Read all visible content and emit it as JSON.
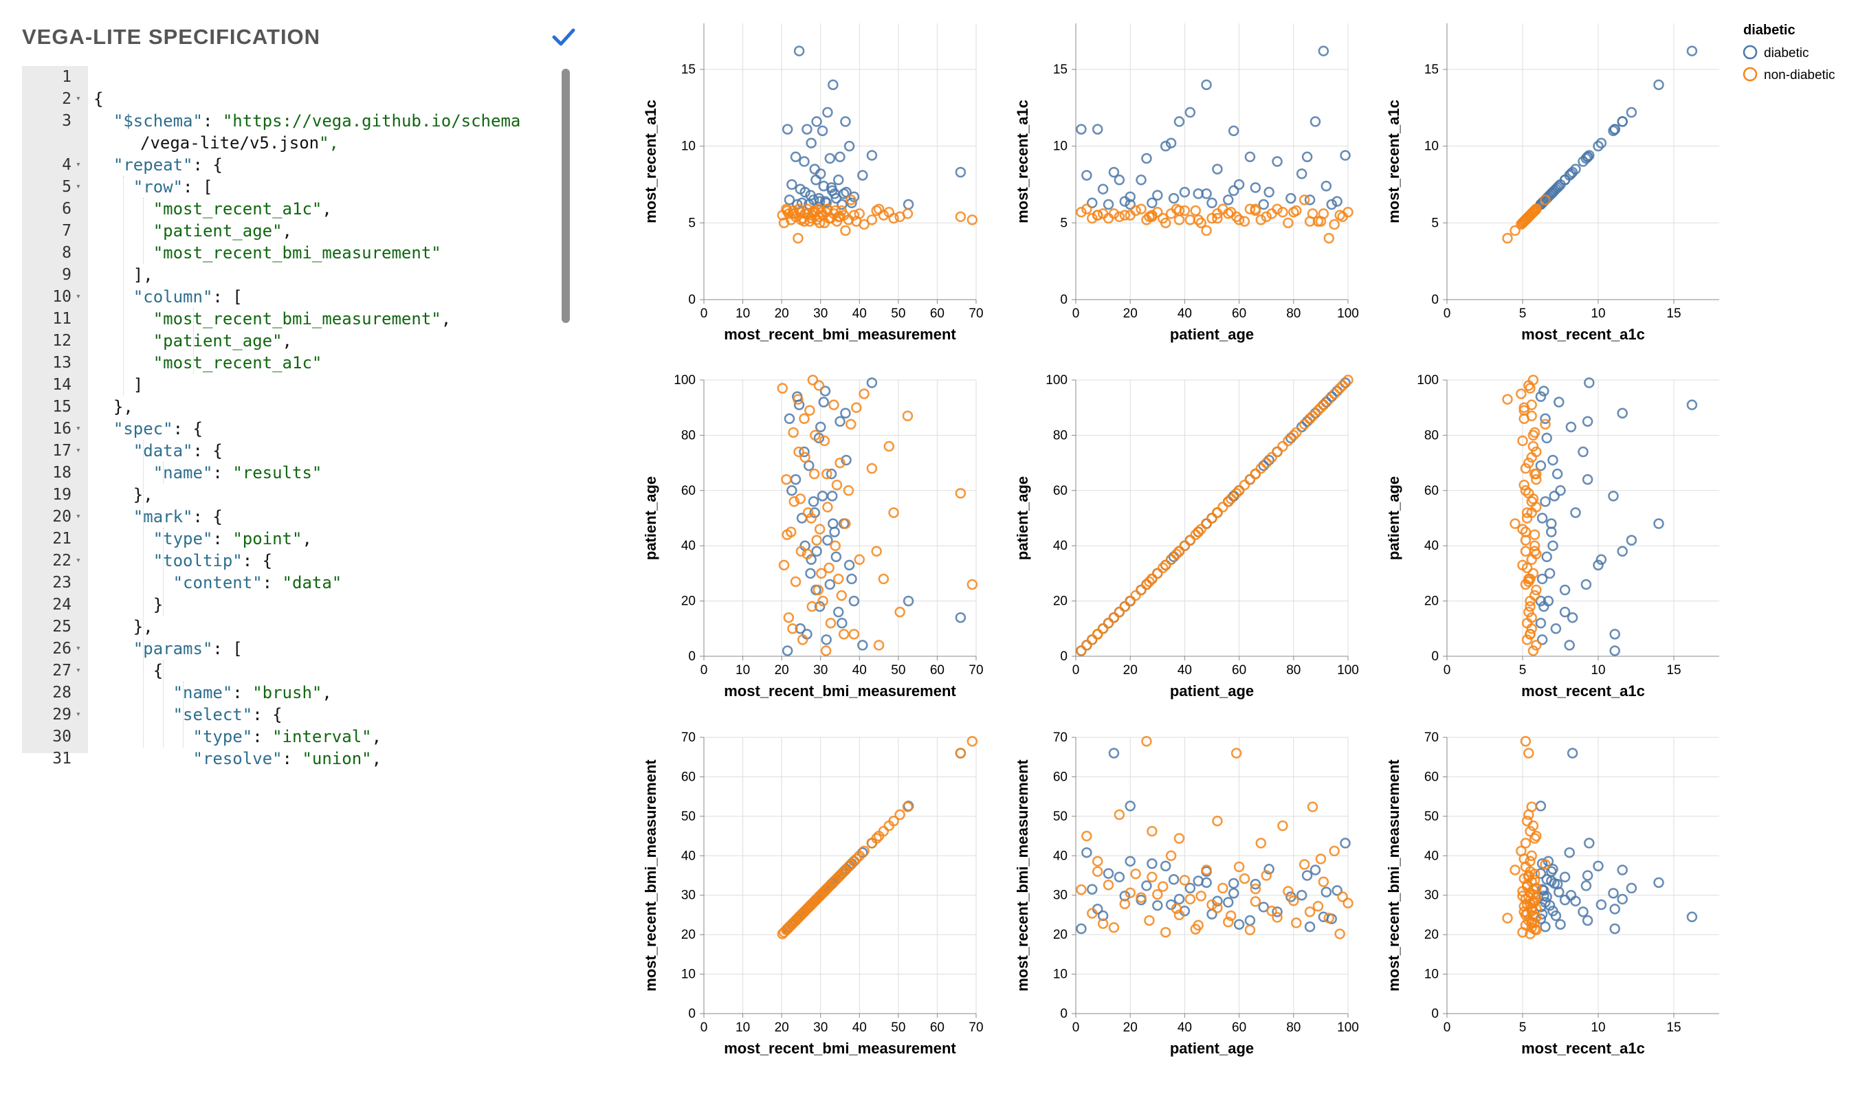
{
  "editor": {
    "title": "VEGA-LITE SPECIFICATION",
    "valid_icon": "check-icon",
    "lines": [
      {
        "n": "1",
        "text": "",
        "fold": false
      },
      {
        "n": "2",
        "text": "{",
        "fold": true
      },
      {
        "n": "3",
        "text": "  \"$schema\": \"https://vega.github.io/schema",
        "fold": false
      },
      {
        "n": "",
        "text": "/vega-lite/v5.json\",",
        "fold": false,
        "cont": true
      },
      {
        "n": "4",
        "text": "  \"repeat\": {",
        "fold": true
      },
      {
        "n": "5",
        "text": "    \"row\": [",
        "fold": true
      },
      {
        "n": "6",
        "text": "      \"most_recent_a1c\",",
        "fold": false
      },
      {
        "n": "7",
        "text": "      \"patient_age\",",
        "fold": false
      },
      {
        "n": "8",
        "text": "      \"most_recent_bmi_measurement\"",
        "fold": false
      },
      {
        "n": "9",
        "text": "    ],",
        "fold": false
      },
      {
        "n": "10",
        "text": "    \"column\": [",
        "fold": true
      },
      {
        "n": "11",
        "text": "      \"most_recent_bmi_measurement\",",
        "fold": false
      },
      {
        "n": "12",
        "text": "      \"patient_age\",",
        "fold": false
      },
      {
        "n": "13",
        "text": "      \"most_recent_a1c\"",
        "fold": false
      },
      {
        "n": "14",
        "text": "    ]",
        "fold": false
      },
      {
        "n": "15",
        "text": "  },",
        "fold": false
      },
      {
        "n": "16",
        "text": "  \"spec\": {",
        "fold": true
      },
      {
        "n": "17",
        "text": "    \"data\": {",
        "fold": true
      },
      {
        "n": "18",
        "text": "      \"name\": \"results\"",
        "fold": false
      },
      {
        "n": "19",
        "text": "    },",
        "fold": false
      },
      {
        "n": "20",
        "text": "    \"mark\": {",
        "fold": true
      },
      {
        "n": "21",
        "text": "      \"type\": \"point\",",
        "fold": false
      },
      {
        "n": "22",
        "text": "      \"tooltip\": {",
        "fold": true
      },
      {
        "n": "23",
        "text": "        \"content\": \"data\"",
        "fold": false
      },
      {
        "n": "24",
        "text": "      }",
        "fold": false
      },
      {
        "n": "25",
        "text": "    },",
        "fold": false
      },
      {
        "n": "26",
        "text": "    \"params\": [",
        "fold": true
      },
      {
        "n": "27",
        "text": "      {",
        "fold": true
      },
      {
        "n": "28",
        "text": "        \"name\": \"brush\",",
        "fold": false
      },
      {
        "n": "29",
        "text": "        \"select\": {",
        "fold": true
      },
      {
        "n": "30",
        "text": "          \"type\": \"interval\",",
        "fold": false
      },
      {
        "n": "31",
        "text": "          \"resolve\": \"union\",",
        "fold": false
      }
    ]
  },
  "chart_data": {
    "type": "scatter",
    "title": "",
    "columns": [
      "most_recent_bmi_measurement",
      "patient_age",
      "most_recent_a1c"
    ],
    "rows": [
      "most_recent_a1c",
      "patient_age",
      "most_recent_bmi_measurement"
    ],
    "fields": {
      "most_recent_bmi_measurement": {
        "domain": [
          0,
          70
        ],
        "ticks": [
          0,
          10,
          20,
          30,
          40,
          50,
          60,
          70
        ],
        "label": "most_recent_bmi_measurement"
      },
      "patient_age": {
        "domain": [
          0,
          100
        ],
        "ticks": [
          0,
          20,
          40,
          60,
          80,
          100
        ],
        "label": "patient_age"
      },
      "most_recent_a1c": {
        "domain": [
          0,
          18
        ],
        "ticks": [
          0,
          5,
          10,
          15
        ],
        "label": "most_recent_a1c"
      }
    },
    "legend": {
      "title": "diabetic",
      "position": "top-right",
      "entries": [
        {
          "label": "diabetic",
          "color": "#4c78a8"
        },
        {
          "label": "non-diabetic",
          "color": "#f58518"
        }
      ]
    },
    "grid": true,
    "series": [
      {
        "name": "diabetic",
        "color": "#4c78a8",
        "points": [
          {
            "most_recent_bmi_measurement": 24.5,
            "patient_age": 91,
            "most_recent_a1c": 16.2
          },
          {
            "most_recent_bmi_measurement": 33.2,
            "patient_age": 48,
            "most_recent_a1c": 14.0
          },
          {
            "most_recent_bmi_measurement": 66.0,
            "patient_age": 14,
            "most_recent_a1c": 8.3
          },
          {
            "most_recent_bmi_measurement": 52.6,
            "patient_age": 20,
            "most_recent_a1c": 6.2
          },
          {
            "most_recent_bmi_measurement": 21.5,
            "patient_age": 2,
            "most_recent_a1c": 11.1
          },
          {
            "most_recent_bmi_measurement": 26.5,
            "patient_age": 8,
            "most_recent_a1c": 11.1
          },
          {
            "most_recent_bmi_measurement": 29.0,
            "patient_age": 38,
            "most_recent_a1c": 11.6
          },
          {
            "most_recent_bmi_measurement": 30.5,
            "patient_age": 58,
            "most_recent_a1c": 11.0
          },
          {
            "most_recent_bmi_measurement": 31.8,
            "patient_age": 42,
            "most_recent_a1c": 12.2
          },
          {
            "most_recent_bmi_measurement": 36.4,
            "patient_age": 88,
            "most_recent_a1c": 11.6
          },
          {
            "most_recent_bmi_measurement": 27.6,
            "patient_age": 35,
            "most_recent_a1c": 10.2
          },
          {
            "most_recent_bmi_measurement": 35.0,
            "patient_age": 85,
            "most_recent_a1c": 9.3
          },
          {
            "most_recent_bmi_measurement": 43.2,
            "patient_age": 99,
            "most_recent_a1c": 9.4
          },
          {
            "most_recent_bmi_measurement": 37.4,
            "patient_age": 33,
            "most_recent_a1c": 10.0
          },
          {
            "most_recent_bmi_measurement": 23.6,
            "patient_age": 64,
            "most_recent_a1c": 9.3
          },
          {
            "most_recent_bmi_measurement": 25.8,
            "patient_age": 74,
            "most_recent_a1c": 9.0
          },
          {
            "most_recent_bmi_measurement": 32.4,
            "patient_age": 26,
            "most_recent_a1c": 9.2
          },
          {
            "most_recent_bmi_measurement": 28.5,
            "patient_age": 52,
            "most_recent_a1c": 8.5
          },
          {
            "most_recent_bmi_measurement": 40.8,
            "patient_age": 4,
            "most_recent_a1c": 8.1
          },
          {
            "most_recent_bmi_measurement": 22.6,
            "patient_age": 60,
            "most_recent_a1c": 7.5
          },
          {
            "most_recent_bmi_measurement": 34.6,
            "patient_age": 16,
            "most_recent_a1c": 7.8
          },
          {
            "most_recent_bmi_measurement": 30.8,
            "patient_age": 92,
            "most_recent_a1c": 7.4
          },
          {
            "most_recent_bmi_measurement": 24.8,
            "patient_age": 10,
            "most_recent_a1c": 7.2
          },
          {
            "most_recent_bmi_measurement": 36.6,
            "patient_age": 71,
            "most_recent_a1c": 7.0
          },
          {
            "most_recent_bmi_measurement": 27.4,
            "patient_age": 30,
            "most_recent_a1c": 6.8
          },
          {
            "most_recent_bmi_measurement": 33.6,
            "patient_age": 45,
            "most_recent_a1c": 6.9
          },
          {
            "most_recent_bmi_measurement": 29.6,
            "patient_age": 79,
            "most_recent_a1c": 6.6
          },
          {
            "most_recent_bmi_measurement": 31.2,
            "patient_age": 96,
            "most_recent_a1c": 6.4
          },
          {
            "most_recent_bmi_measurement": 38.6,
            "patient_age": 20,
            "most_recent_a1c": 6.7
          },
          {
            "most_recent_bmi_measurement": 28.2,
            "patient_age": 56,
            "most_recent_a1c": 6.5
          },
          {
            "most_recent_bmi_measurement": 26.0,
            "patient_age": 40,
            "most_recent_a1c": 7.0
          },
          {
            "most_recent_bmi_measurement": 32.8,
            "patient_age": 66,
            "most_recent_a1c": 7.3
          },
          {
            "most_recent_bmi_measurement": 35.5,
            "patient_age": 12,
            "most_recent_a1c": 6.2
          },
          {
            "most_recent_bmi_measurement": 30.0,
            "patient_age": 83,
            "most_recent_a1c": 8.2
          },
          {
            "most_recent_bmi_measurement": 25.2,
            "patient_age": 50,
            "most_recent_a1c": 6.3
          },
          {
            "most_recent_bmi_measurement": 28.8,
            "patient_age": 24,
            "most_recent_a1c": 7.8
          },
          {
            "most_recent_bmi_measurement": 34.0,
            "patient_age": 36,
            "most_recent_a1c": 6.6
          },
          {
            "most_recent_bmi_measurement": 22.0,
            "patient_age": 86,
            "most_recent_a1c": 6.5
          },
          {
            "most_recent_bmi_measurement": 31.5,
            "patient_age": 6,
            "most_recent_a1c": 6.3
          },
          {
            "most_recent_bmi_measurement": 27.0,
            "patient_age": 69,
            "most_recent_a1c": 6.2
          },
          {
            "most_recent_bmi_measurement": 36.0,
            "patient_age": 48,
            "most_recent_a1c": 6.9
          },
          {
            "most_recent_bmi_measurement": 29.8,
            "patient_age": 18,
            "most_recent_a1c": 6.4
          },
          {
            "most_recent_bmi_measurement": 24.0,
            "patient_age": 94,
            "most_recent_a1c": 6.2
          },
          {
            "most_recent_bmi_measurement": 33.0,
            "patient_age": 58,
            "most_recent_a1c": 7.1
          },
          {
            "most_recent_bmi_measurement": 38.0,
            "patient_age": 28,
            "most_recent_a1c": 6.3
          }
        ]
      },
      {
        "name": "non-diabetic",
        "color": "#f58518",
        "points": [
          {
            "most_recent_bmi_measurement": 69.0,
            "patient_age": 26,
            "most_recent_a1c": 5.2
          },
          {
            "most_recent_bmi_measurement": 66.0,
            "patient_age": 59,
            "most_recent_a1c": 5.4
          },
          {
            "most_recent_bmi_measurement": 52.4,
            "patient_age": 87,
            "most_recent_a1c": 5.6
          },
          {
            "most_recent_bmi_measurement": 50.4,
            "patient_age": 16,
            "most_recent_a1c": 5.4
          },
          {
            "most_recent_bmi_measurement": 47.6,
            "patient_age": 76,
            "most_recent_a1c": 5.7
          },
          {
            "most_recent_bmi_measurement": 45.0,
            "patient_age": 4,
            "most_recent_a1c": 5.9
          },
          {
            "most_recent_bmi_measurement": 43.2,
            "patient_age": 68,
            "most_recent_a1c": 5.2
          },
          {
            "most_recent_bmi_measurement": 41.2,
            "patient_age": 95,
            "most_recent_a1c": 4.9
          },
          {
            "most_recent_bmi_measurement": 40.0,
            "patient_age": 35,
            "most_recent_a1c": 5.6
          },
          {
            "most_recent_bmi_measurement": 38.6,
            "patient_age": 8,
            "most_recent_a1c": 5.5
          },
          {
            "most_recent_bmi_measurement": 37.8,
            "patient_age": 84,
            "most_recent_a1c": 6.5
          },
          {
            "most_recent_bmi_measurement": 36.4,
            "patient_age": 48,
            "most_recent_a1c": 4.5
          },
          {
            "most_recent_bmi_measurement": 35.4,
            "patient_age": 22,
            "most_recent_a1c": 5.8
          },
          {
            "most_recent_bmi_measurement": 34.2,
            "patient_age": 62,
            "most_recent_a1c": 5.1
          },
          {
            "most_recent_bmi_measurement": 33.4,
            "patient_age": 91,
            "most_recent_a1c": 5.6
          },
          {
            "most_recent_bmi_measurement": 32.6,
            "patient_age": 12,
            "most_recent_a1c": 5.3
          },
          {
            "most_recent_bmi_measurement": 31.8,
            "patient_age": 54,
            "most_recent_a1c": 5.9
          },
          {
            "most_recent_bmi_measurement": 31.0,
            "patient_age": 78,
            "most_recent_a1c": 5.0
          },
          {
            "most_recent_bmi_measurement": 30.2,
            "patient_age": 30,
            "most_recent_a1c": 5.7
          },
          {
            "most_recent_bmi_measurement": 29.6,
            "patient_age": 98,
            "most_recent_a1c": 5.4
          },
          {
            "most_recent_bmi_measurement": 29.0,
            "patient_age": 42,
            "most_recent_a1c": 5.2
          },
          {
            "most_recent_bmi_measurement": 28.4,
            "patient_age": 66,
            "most_recent_a1c": 5.8
          },
          {
            "most_recent_bmi_measurement": 27.8,
            "patient_age": 18,
            "most_recent_a1c": 5.5
          },
          {
            "most_recent_bmi_measurement": 27.2,
            "patient_age": 89,
            "most_recent_a1c": 5.1
          },
          {
            "most_recent_bmi_measurement": 26.6,
            "patient_age": 37,
            "most_recent_a1c": 5.9
          },
          {
            "most_recent_bmi_measurement": 26.0,
            "patient_age": 72,
            "most_recent_a1c": 5.6
          },
          {
            "most_recent_bmi_measurement": 25.4,
            "patient_age": 6,
            "most_recent_a1c": 5.3
          },
          {
            "most_recent_bmi_measurement": 24.8,
            "patient_age": 57,
            "most_recent_a1c": 5.7
          },
          {
            "most_recent_bmi_measurement": 24.2,
            "patient_age": 93,
            "most_recent_a1c": 4.0
          },
          {
            "most_recent_bmi_measurement": 23.6,
            "patient_age": 27,
            "most_recent_a1c": 5.4
          },
          {
            "most_recent_bmi_measurement": 23.0,
            "patient_age": 81,
            "most_recent_a1c": 5.8
          },
          {
            "most_recent_bmi_measurement": 22.4,
            "patient_age": 45,
            "most_recent_a1c": 5.2
          },
          {
            "most_recent_bmi_measurement": 21.8,
            "patient_age": 14,
            "most_recent_a1c": 5.6
          },
          {
            "most_recent_bmi_measurement": 21.2,
            "patient_age": 64,
            "most_recent_a1c": 5.9
          },
          {
            "most_recent_bmi_measurement": 20.6,
            "patient_age": 33,
            "most_recent_a1c": 5.0
          },
          {
            "most_recent_bmi_measurement": 20.2,
            "patient_age": 97,
            "most_recent_a1c": 5.5
          },
          {
            "most_recent_bmi_measurement": 31.4,
            "patient_age": 2,
            "most_recent_a1c": 5.7
          },
          {
            "most_recent_bmi_measurement": 27.6,
            "patient_age": 50,
            "most_recent_a1c": 5.3
          },
          {
            "most_recent_bmi_measurement": 33.8,
            "patient_age": 40,
            "most_recent_a1c": 5.8
          },
          {
            "most_recent_bmi_measurement": 25.8,
            "patient_age": 86,
            "most_recent_a1c": 5.1
          },
          {
            "most_recent_bmi_measurement": 29.4,
            "patient_age": 24,
            "most_recent_a1c": 5.9
          },
          {
            "most_recent_bmi_measurement": 35.0,
            "patient_age": 70,
            "most_recent_a1c": 5.4
          },
          {
            "most_recent_bmi_measurement": 22.8,
            "patient_age": 10,
            "most_recent_a1c": 5.6
          },
          {
            "most_recent_bmi_measurement": 37.2,
            "patient_age": 60,
            "most_recent_a1c": 5.2
          },
          {
            "most_recent_bmi_measurement": 28.0,
            "patient_age": 100,
            "most_recent_a1c": 5.7
          },
          {
            "most_recent_bmi_measurement": 30.6,
            "patient_age": 20,
            "most_recent_a1c": 5.5
          },
          {
            "most_recent_bmi_measurement": 24.4,
            "patient_age": 74,
            "most_recent_a1c": 5.9
          },
          {
            "most_recent_bmi_measurement": 32.2,
            "patient_age": 32,
            "most_recent_a1c": 5.3
          },
          {
            "most_recent_bmi_measurement": 26.8,
            "patient_age": 52,
            "most_recent_a1c": 5.6
          },
          {
            "most_recent_bmi_measurement": 39.2,
            "patient_age": 90,
            "most_recent_a1c": 5.1
          },
          {
            "most_recent_bmi_measurement": 21.4,
            "patient_age": 44,
            "most_recent_a1c": 5.8
          },
          {
            "most_recent_bmi_measurement": 34.6,
            "patient_age": 28,
            "most_recent_a1c": 5.4
          },
          {
            "most_recent_bmi_measurement": 28.6,
            "patient_age": 80,
            "most_recent_a1c": 5.7
          },
          {
            "most_recent_bmi_measurement": 25.0,
            "patient_age": 38,
            "most_recent_a1c": 5.2
          },
          {
            "most_recent_bmi_measurement": 31.6,
            "patient_age": 66,
            "most_recent_a1c": 5.9
          },
          {
            "most_recent_bmi_measurement": 36.0,
            "patient_age": 8,
            "most_recent_a1c": 5.5
          },
          {
            "most_recent_bmi_measurement": 23.2,
            "patient_age": 56,
            "most_recent_a1c": 5.6
          },
          {
            "most_recent_bmi_measurement": 29.8,
            "patient_age": 46,
            "most_recent_a1c": 5.0
          },
          {
            "most_recent_bmi_measurement": 44.4,
            "patient_age": 38,
            "most_recent_a1c": 5.8
          },
          {
            "most_recent_bmi_measurement": 46.2,
            "patient_age": 28,
            "most_recent_a1c": 5.5
          },
          {
            "most_recent_bmi_measurement": 48.8,
            "patient_age": 52,
            "most_recent_a1c": 5.3
          }
        ]
      }
    ]
  }
}
